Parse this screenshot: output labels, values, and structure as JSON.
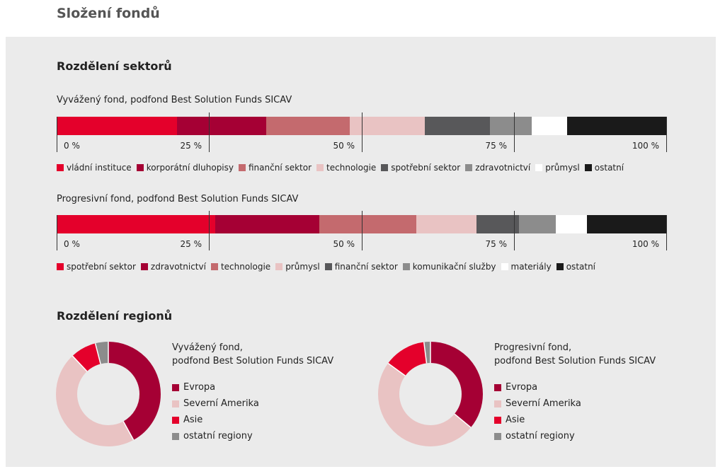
{
  "page_title": "Složení fondů",
  "sectors": {
    "title": "Rozdělení sektorů",
    "tick_labels": [
      "0 %",
      "25 %",
      "50 %",
      "75 %",
      "100 %"
    ]
  },
  "regions": {
    "title": "Rozdělení regionů"
  },
  "chart_data": [
    {
      "type": "bar",
      "orientation": "horizontal-stacked",
      "title": "Vyvážený fond, podfond Best Solution Funds SICAV",
      "xlim": [
        0,
        100
      ],
      "x_ticks": [
        "0 %",
        "25 %",
        "50 %",
        "75 %",
        "100 %"
      ],
      "legend_placement": "bottom",
      "series": [
        {
          "name": "vládní instituce",
          "value": 19.7,
          "color": "#e4002b"
        },
        {
          "name": "korporátní dluhopisy",
          "value": 14.6,
          "color": "#a50034"
        },
        {
          "name": "finanční sektor",
          "value": 13.7,
          "color": "#c46a6e"
        },
        {
          "name": "technologie",
          "value": 12.3,
          "color": "#e9c3c3"
        },
        {
          "name": "spotřební sektor",
          "value": 10.7,
          "color": "#58585a"
        },
        {
          "name": "zdravotnictví",
          "value": 6.9,
          "color": "#8c8c8c"
        },
        {
          "name": "průmysl",
          "value": 5.8,
          "color": "#ffffff"
        },
        {
          "name": "ostatní",
          "value": 16.3,
          "color": "#1a1a1a"
        }
      ]
    },
    {
      "type": "bar",
      "orientation": "horizontal-stacked",
      "title": "Progresivní fond, podfond Best Solution Funds SICAV",
      "xlim": [
        0,
        100
      ],
      "x_ticks": [
        "0 %",
        "25 %",
        "50 %",
        "75 %",
        "100 %"
      ],
      "legend_placement": "bottom",
      "series": [
        {
          "name": "spotřební sektor",
          "value": 26.0,
          "color": "#e4002b"
        },
        {
          "name": "zdravotnictví",
          "value": 17.0,
          "color": "#a50034"
        },
        {
          "name": "technologie",
          "value": 15.9,
          "color": "#c46a6e"
        },
        {
          "name": "průmysl",
          "value": 9.9,
          "color": "#e9c3c3"
        },
        {
          "name": "finanční sektor",
          "value": 7.0,
          "color": "#58585a"
        },
        {
          "name": "komunikační služby",
          "value": 6.0,
          "color": "#8c8c8c"
        },
        {
          "name": "materiály",
          "value": 5.1,
          "color": "#ffffff"
        },
        {
          "name": "ostatní",
          "value": 13.1,
          "color": "#1a1a1a"
        }
      ]
    },
    {
      "type": "pie",
      "variant": "donut",
      "title_lines": [
        "Vyvážený fond,",
        "podfond Best Solution Funds SICAV"
      ],
      "legend_placement": "right",
      "slices": [
        {
          "name": "Evropa",
          "value": 42,
          "color": "#a50034"
        },
        {
          "name": "Severní Amerika",
          "value": 46,
          "color": "#e9c3c3"
        },
        {
          "name": "Asie",
          "value": 8,
          "color": "#e4002b"
        },
        {
          "name": "ostatní regiony",
          "value": 4,
          "color": "#8c8c8c"
        }
      ]
    },
    {
      "type": "pie",
      "variant": "donut",
      "title_lines": [
        "Progresivní fond,",
        "podfond Best Solution Funds SICAV"
      ],
      "legend_placement": "right",
      "slices": [
        {
          "name": "Evropa",
          "value": 36,
          "color": "#a50034"
        },
        {
          "name": "Severní Amerika",
          "value": 49,
          "color": "#e9c3c3"
        },
        {
          "name": "Asie",
          "value": 13,
          "color": "#e4002b"
        },
        {
          "name": "ostatní regiony",
          "value": 2,
          "color": "#8c8c8c"
        }
      ]
    }
  ]
}
